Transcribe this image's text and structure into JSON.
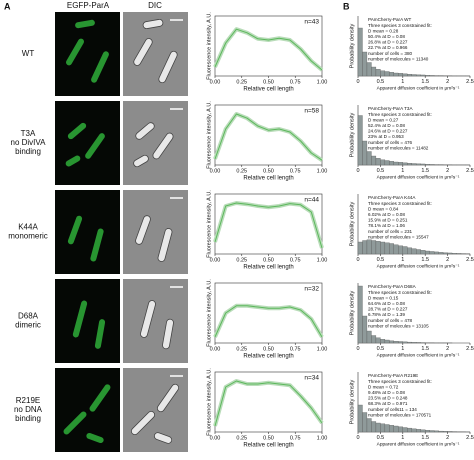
{
  "panel_a": {
    "label": "A",
    "headers": [
      "EGFP-ParA",
      "DIC"
    ],
    "rows": [
      {
        "label": [
          "WT"
        ]
      },
      {
        "label": [
          "T3A",
          "no DivIVA",
          "binding"
        ]
      },
      {
        "label": [
          "K44A",
          "monomeric"
        ]
      },
      {
        "label": [
          "D68A",
          "dimeric"
        ]
      },
      {
        "label": [
          "R219E",
          "no DNA",
          "binding"
        ]
      }
    ]
  },
  "panel_b": {
    "label": "B"
  },
  "chart_data": [
    {
      "type": "line",
      "annotation": "n=43",
      "xlabel": "Relative cell length",
      "ylabel": "Fluorescence intensity, A.U.",
      "x": [
        0,
        0.1,
        0.2,
        0.3,
        0.4,
        0.5,
        0.6,
        0.7,
        0.8,
        0.9,
        1
      ],
      "values": [
        0.15,
        0.55,
        0.78,
        0.72,
        0.62,
        0.6,
        0.63,
        0.6,
        0.45,
        0.25,
        0.1
      ],
      "color": "#5cb85c",
      "xlim": [
        0,
        1
      ],
      "ylim": [
        0,
        1
      ],
      "xticks": [
        {
          "value": 0,
          "label": "0.00"
        },
        {
          "value": 0.25,
          "label": "0.25"
        },
        {
          "value": 0.5,
          "label": "0.50"
        },
        {
          "value": 0.75,
          "label": "0.75"
        },
        {
          "value": 1,
          "label": "1.00"
        }
      ]
    },
    {
      "type": "line",
      "annotation": "n=58",
      "xlabel": "Relative cell length",
      "ylabel": "Fluorescence intensity, A.U.",
      "x": [
        0,
        0.1,
        0.2,
        0.3,
        0.4,
        0.5,
        0.6,
        0.7,
        0.8,
        0.9,
        1
      ],
      "values": [
        0.1,
        0.6,
        0.85,
        0.78,
        0.65,
        0.58,
        0.6,
        0.55,
        0.4,
        0.2,
        0.08
      ],
      "color": "#5cb85c",
      "xlim": [
        0,
        1
      ],
      "ylim": [
        0,
        1
      ],
      "xticks": [
        {
          "value": 0,
          "label": "0.00"
        },
        {
          "value": 0.25,
          "label": "0.25"
        },
        {
          "value": 0.5,
          "label": "0.50"
        },
        {
          "value": 0.75,
          "label": "0.75"
        },
        {
          "value": 1,
          "label": "1.00"
        }
      ]
    },
    {
      "type": "line",
      "annotation": "n=44",
      "xlabel": "Relative cell length",
      "ylabel": "Fluorescence intensity, A.U.",
      "x": [
        0,
        0.1,
        0.2,
        0.3,
        0.4,
        0.5,
        0.6,
        0.7,
        0.8,
        0.9,
        1
      ],
      "values": [
        0.2,
        0.8,
        0.85,
        0.83,
        0.8,
        0.78,
        0.8,
        0.84,
        0.82,
        0.7,
        0.1
      ],
      "color": "#5cb85c",
      "xlim": [
        0,
        1
      ],
      "ylim": [
        0,
        1
      ],
      "xticks": [
        {
          "value": 0,
          "label": "0.00"
        },
        {
          "value": 0.25,
          "label": "0.25"
        },
        {
          "value": 0.5,
          "label": "0.50"
        },
        {
          "value": 0.75,
          "label": "0.75"
        },
        {
          "value": 1,
          "label": "1.00"
        }
      ]
    },
    {
      "type": "line",
      "annotation": "n=32",
      "xlabel": "Relative cell length",
      "ylabel": "Fluorescence intensity, A.U.",
      "x": [
        0,
        0.1,
        0.2,
        0.3,
        0.4,
        0.5,
        0.6,
        0.7,
        0.8,
        0.9,
        1
      ],
      "values": [
        0.1,
        0.5,
        0.62,
        0.62,
        0.6,
        0.58,
        0.58,
        0.6,
        0.55,
        0.4,
        0.1
      ],
      "color": "#5cb85c",
      "xlim": [
        0,
        1
      ],
      "ylim": [
        0,
        1
      ],
      "xticks": [
        {
          "value": 0,
          "label": "0.00"
        },
        {
          "value": 0.25,
          "label": "0.25"
        },
        {
          "value": 0.5,
          "label": "0.50"
        },
        {
          "value": 0.75,
          "label": "0.75"
        },
        {
          "value": 1,
          "label": "1.00"
        }
      ]
    },
    {
      "type": "line",
      "annotation": "n=34",
      "xlabel": "Relative cell length",
      "ylabel": "Fluorescence intensity, A.U.",
      "x": [
        0,
        0.1,
        0.2,
        0.3,
        0.4,
        0.5,
        0.6,
        0.7,
        0.8,
        0.9,
        1
      ],
      "values": [
        0.1,
        0.75,
        0.85,
        0.8,
        0.8,
        0.82,
        0.8,
        0.78,
        0.6,
        0.4,
        0.15
      ],
      "color": "#5cb85c",
      "xlim": [
        0,
        1
      ],
      "ylim": [
        0,
        1
      ],
      "xticks": [
        {
          "value": 0,
          "label": "0.00"
        },
        {
          "value": 0.25,
          "label": "0.25"
        },
        {
          "value": 0.5,
          "label": "0.50"
        },
        {
          "value": 0.75,
          "label": "0.75"
        },
        {
          "value": 1,
          "label": "1.00"
        }
      ]
    },
    {
      "type": "histogram",
      "text": [
        "PAmCherry-ParA WT",
        "Three species 3 constrained fit:",
        "D mean = 0.28",
        "50.4% at D = 0.08",
        "26.8% at D = 0.227",
        "22.7% at D = 0.966",
        "number of cells = 380",
        "number of molecules = 11340"
      ],
      "xlabel": "Apparent diffusion coefficient in µm²s⁻¹",
      "ylabel": "Probability density",
      "bins": [
        0,
        0.1,
        0.2,
        0.3,
        0.4,
        0.5,
        0.6,
        0.7,
        0.8,
        0.9,
        1,
        1.1,
        1.2,
        1.3,
        1.4,
        1.5,
        1.6,
        1.7,
        1.8,
        1.9,
        2,
        2.1,
        2.2,
        2.3,
        2.4,
        2.5
      ],
      "values": [
        3.2,
        1.6,
        0.9,
        0.6,
        0.45,
        0.35,
        0.3,
        0.25,
        0.2,
        0.18,
        0.15,
        0.12,
        0.1,
        0.08,
        0.07,
        0.05,
        0.04,
        0.03,
        0.03,
        0.02,
        0.02,
        0.01,
        0.01,
        0.01,
        0.01
      ],
      "color": "#8f9a9a",
      "xlim": [
        0,
        2.5
      ],
      "ylim": [
        0,
        4
      ],
      "xticks": [
        0,
        0.5,
        1,
        1.5,
        2,
        2.5
      ]
    },
    {
      "type": "histogram",
      "text": [
        "PAmCherry-ParA T3A",
        "Three species 3 constrained fit:",
        "D mean = 0.27",
        "52.4% at D = 0.08",
        "24.6% at D = 0.227",
        "23% at D = 0.953",
        "number of cells = 476",
        "number of molecules = 11482"
      ],
      "xlabel": "Apparent diffusion coefficient in µm²s⁻¹",
      "ylabel": "Probability density",
      "bins": [
        0,
        0.1,
        0.2,
        0.3,
        0.4,
        0.5,
        0.6,
        0.7,
        0.8,
        0.9,
        1,
        1.1,
        1.2,
        1.3,
        1.4,
        1.5,
        1.6,
        1.7,
        1.8,
        1.9,
        2,
        2.1,
        2.2,
        2.3,
        2.4,
        2.5
      ],
      "values": [
        3.3,
        1.6,
        0.9,
        0.6,
        0.45,
        0.35,
        0.3,
        0.25,
        0.2,
        0.18,
        0.15,
        0.12,
        0.1,
        0.08,
        0.07,
        0.05,
        0.04,
        0.03,
        0.03,
        0.02,
        0.02,
        0.01,
        0.01,
        0.01,
        0.01
      ],
      "color": "#8f9a9a",
      "xlim": [
        0,
        2.5
      ],
      "ylim": [
        0,
        4
      ],
      "xticks": [
        0,
        0.5,
        1,
        1.5,
        2,
        2.5
      ]
    },
    {
      "type": "histogram",
      "text": [
        "PAmCherry-ParA K44A",
        "Three species 3 constrained fit:",
        "D mean = 0.84",
        "6.02% at D = 0.08",
        "15.9% at D = 0.251",
        "78.1% at D = 1.06",
        "number of cells = 231",
        "number of molecules = 15547"
      ],
      "xlabel": "Apparent diffusion coefficient in µm²s⁻¹",
      "ylabel": "Probability density",
      "bins": [
        0,
        0.1,
        0.2,
        0.3,
        0.4,
        0.5,
        0.6,
        0.7,
        0.8,
        0.9,
        1,
        1.1,
        1.2,
        1.3,
        1.4,
        1.5,
        1.6,
        1.7,
        1.8,
        1.9,
        2,
        2.1,
        2.2,
        2.3,
        2.4,
        2.5
      ],
      "values": [
        0.8,
        0.9,
        0.95,
        0.9,
        0.85,
        0.8,
        0.75,
        0.7,
        0.62,
        0.55,
        0.5,
        0.42,
        0.36,
        0.3,
        0.25,
        0.2,
        0.17,
        0.14,
        0.11,
        0.09,
        0.07,
        0.05,
        0.04,
        0.03,
        0.02
      ],
      "color": "#8f9a9a",
      "xlim": [
        0,
        2.5
      ],
      "ylim": [
        0,
        4
      ],
      "xticks": [
        0,
        0.5,
        1,
        1.5,
        2,
        2.5
      ]
    },
    {
      "type": "histogram",
      "text": [
        "PAmCherry-ParA D68A",
        "Three species 3 constrained fit:",
        "D mean = 0.15",
        "64.6% at D = 0.08",
        "28.7% at D = 0.227",
        "6.78% at D = 1.39",
        "number of cells = 478",
        "number of molecules = 13105"
      ],
      "xlabel": "Apparent diffusion coefficient in µm²s⁻¹",
      "ylabel": "Probability density",
      "bins": [
        0,
        0.1,
        0.2,
        0.3,
        0.4,
        0.5,
        0.6,
        0.7,
        0.8,
        0.9,
        1,
        1.1,
        1.2,
        1.3,
        1.4,
        1.5,
        1.6,
        1.7,
        1.8,
        1.9,
        2,
        2.1,
        2.2,
        2.3,
        2.4,
        2.5
      ],
      "values": [
        3.8,
        1.8,
        0.8,
        0.5,
        0.35,
        0.25,
        0.2,
        0.15,
        0.12,
        0.1,
        0.08,
        0.06,
        0.05,
        0.04,
        0.03,
        0.02,
        0.02,
        0.01,
        0.01,
        0.01,
        0.01,
        0,
        0,
        0,
        0
      ],
      "color": "#8f9a9a",
      "xlim": [
        0,
        2.5
      ],
      "ylim": [
        0,
        4
      ],
      "xticks": [
        0,
        0.5,
        1,
        1.5,
        2,
        2.5
      ]
    },
    {
      "type": "histogram",
      "text": [
        "PAmCherry-ParA R219E",
        "Three species 3 constrained fit:",
        "D mean = 0.72",
        "9.48% at D = 0.08",
        "23.5% at D = 0.248",
        "68.3% at D = 0.971",
        "number of cells11 = 134",
        "number of molecules = 170571"
      ],
      "xlabel": "Apparent diffusion coefficient in µm²s⁻¹",
      "ylabel": "Probability density",
      "bins": [
        0,
        0.1,
        0.2,
        0.3,
        0.4,
        0.5,
        0.6,
        0.7,
        0.8,
        0.9,
        1,
        1.1,
        1.2,
        1.3,
        1.4,
        1.5,
        1.6,
        1.7,
        1.8,
        1.9,
        2,
        2.1,
        2.2,
        2.3,
        2.4,
        2.5
      ],
      "values": [
        1.8,
        1.3,
        0.9,
        0.7,
        0.6,
        0.55,
        0.5,
        0.45,
        0.4,
        0.35,
        0.3,
        0.26,
        0.22,
        0.18,
        0.15,
        0.12,
        0.1,
        0.08,
        0.06,
        0.05,
        0.04,
        0.03,
        0.02,
        0.02,
        0.01
      ],
      "color": "#8f9a9a",
      "xlim": [
        0,
        2.5
      ],
      "ylim": [
        0,
        4
      ],
      "xticks": [
        0,
        0.5,
        1,
        1.5,
        2,
        2.5
      ]
    }
  ]
}
